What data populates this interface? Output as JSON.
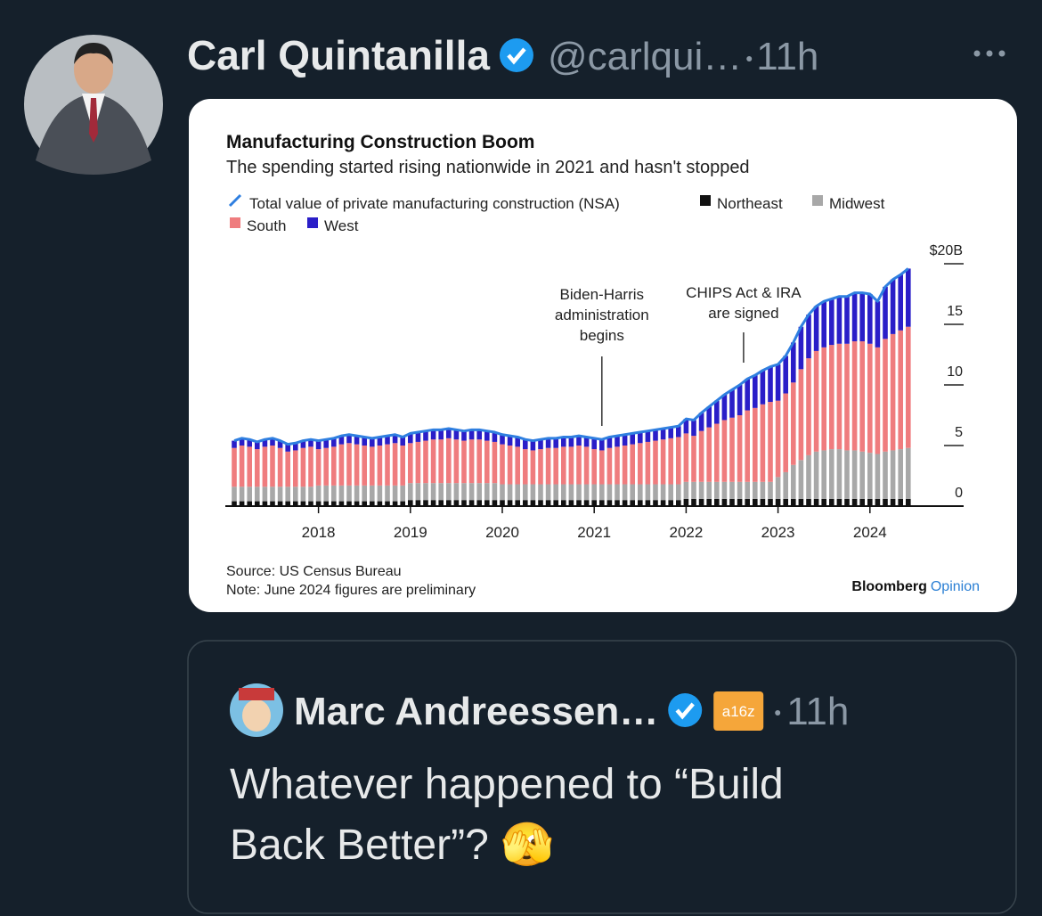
{
  "tweet": {
    "author": "Carl Quintanilla",
    "handle": "@carlqui…",
    "time": "11h"
  },
  "chart_data": {
    "type": "bar",
    "stacked": true,
    "title": "Manufacturing Construction Boom",
    "subtitle": "The spending started rising nationwide in 2021 and hasn't stopped",
    "source": "Source: US Census Bureau",
    "note": "Note: June 2024 figures are preliminary",
    "brand": "Bloomberg",
    "brand_suffix": "Opinion",
    "annotations": [
      {
        "text": [
          "Biden-Harris",
          "administration",
          "begins"
        ]
      },
      {
        "text": [
          "CHIPS Act & IRA",
          "are signed"
        ]
      }
    ],
    "categories": [
      null,
      null,
      null,
      null,
      null,
      null,
      null,
      null,
      null,
      null,
      null,
      "2018",
      null,
      null,
      null,
      null,
      null,
      null,
      null,
      null,
      null,
      null,
      null,
      "2019",
      null,
      null,
      null,
      null,
      null,
      null,
      null,
      null,
      null,
      null,
      null,
      "2020",
      null,
      null,
      null,
      null,
      null,
      null,
      null,
      null,
      null,
      null,
      null,
      "2021",
      null,
      null,
      null,
      null,
      null,
      null,
      null,
      null,
      null,
      null,
      null,
      "2022",
      null,
      null,
      null,
      null,
      null,
      null,
      null,
      null,
      null,
      null,
      null,
      "2023",
      null,
      null,
      null,
      null,
      null,
      null,
      null,
      null,
      null,
      null,
      null,
      "2024",
      null,
      null,
      null,
      null,
      null
    ],
    "series": [
      {
        "name": "Total value of private manufacturing construction (NSA)",
        "color": "#2f7fe0",
        "kind": "line",
        "values": [
          5.4,
          5.6,
          5.5,
          5.3,
          5.5,
          5.6,
          5.4,
          5.1,
          5.2,
          5.4,
          5.5,
          5.4,
          5.5,
          5.6,
          5.8,
          5.9,
          5.8,
          5.7,
          5.6,
          5.7,
          5.8,
          5.9,
          5.7,
          6.0,
          6.1,
          6.2,
          6.3,
          6.3,
          6.4,
          6.3,
          6.2,
          6.3,
          6.3,
          6.2,
          6.1,
          5.9,
          5.8,
          5.7,
          5.5,
          5.4,
          5.5,
          5.6,
          5.6,
          5.7,
          5.7,
          5.8,
          5.7,
          5.6,
          5.5,
          5.7,
          5.8,
          5.9,
          6.0,
          6.1,
          6.2,
          6.3,
          6.4,
          6.5,
          6.6,
          7.2,
          7.1,
          7.7,
          8.2,
          8.7,
          9.2,
          9.6,
          10.0,
          10.5,
          10.8,
          11.2,
          11.5,
          11.7,
          12.4,
          13.5,
          14.8,
          15.8,
          16.5,
          16.9,
          17.1,
          17.3,
          17.3,
          17.6,
          17.6,
          17.5,
          16.9,
          18.1,
          18.7,
          19.1,
          19.6
        ]
      },
      {
        "name": "Northeast",
        "color": "#111111",
        "kind": "bar",
        "values": [
          0.4,
          0.4,
          0.4,
          0.4,
          0.4,
          0.4,
          0.4,
          0.4,
          0.4,
          0.4,
          0.4,
          0.4,
          0.4,
          0.4,
          0.4,
          0.4,
          0.4,
          0.4,
          0.4,
          0.4,
          0.4,
          0.4,
          0.4,
          0.5,
          0.5,
          0.5,
          0.5,
          0.5,
          0.5,
          0.5,
          0.5,
          0.5,
          0.5,
          0.5,
          0.5,
          0.5,
          0.5,
          0.5,
          0.5,
          0.5,
          0.5,
          0.5,
          0.5,
          0.5,
          0.5,
          0.5,
          0.5,
          0.5,
          0.5,
          0.5,
          0.5,
          0.5,
          0.5,
          0.5,
          0.5,
          0.5,
          0.5,
          0.5,
          0.5,
          0.6,
          0.6,
          0.6,
          0.6,
          0.6,
          0.6,
          0.6,
          0.6,
          0.6,
          0.6,
          0.6,
          0.6,
          0.6,
          0.6,
          0.6,
          0.6,
          0.6,
          0.6,
          0.6,
          0.6,
          0.6,
          0.6,
          0.6,
          0.6,
          0.6,
          0.6,
          0.6,
          0.6,
          0.6,
          0.6
        ]
      },
      {
        "name": "Midwest",
        "color": "#a8a8a8",
        "kind": "bar",
        "values": [
          1.2,
          1.2,
          1.2,
          1.2,
          1.2,
          1.2,
          1.2,
          1.2,
          1.2,
          1.2,
          1.2,
          1.3,
          1.3,
          1.3,
          1.3,
          1.3,
          1.3,
          1.3,
          1.3,
          1.3,
          1.3,
          1.3,
          1.3,
          1.4,
          1.4,
          1.4,
          1.4,
          1.4,
          1.4,
          1.4,
          1.4,
          1.4,
          1.4,
          1.4,
          1.4,
          1.3,
          1.3,
          1.3,
          1.3,
          1.3,
          1.3,
          1.3,
          1.3,
          1.3,
          1.3,
          1.3,
          1.3,
          1.3,
          1.3,
          1.3,
          1.3,
          1.3,
          1.3,
          1.3,
          1.3,
          1.3,
          1.3,
          1.3,
          1.3,
          1.4,
          1.4,
          1.4,
          1.4,
          1.4,
          1.4,
          1.4,
          1.4,
          1.4,
          1.4,
          1.4,
          1.4,
          1.8,
          2.2,
          2.8,
          3.2,
          3.6,
          3.9,
          4.0,
          4.1,
          4.1,
          4.0,
          4.0,
          3.9,
          3.8,
          3.7,
          3.9,
          4.0,
          4.1,
          4.2
        ]
      },
      {
        "name": "South",
        "color": "#ef7c7e",
        "kind": "bar",
        "values": [
          3.2,
          3.4,
          3.3,
          3.1,
          3.3,
          3.4,
          3.2,
          2.9,
          3.0,
          3.2,
          3.3,
          3.0,
          3.1,
          3.2,
          3.4,
          3.5,
          3.4,
          3.3,
          3.2,
          3.3,
          3.4,
          3.5,
          3.3,
          3.3,
          3.4,
          3.5,
          3.6,
          3.6,
          3.7,
          3.6,
          3.5,
          3.6,
          3.6,
          3.5,
          3.4,
          3.3,
          3.2,
          3.1,
          2.9,
          2.8,
          2.9,
          3.0,
          3.0,
          3.1,
          3.1,
          3.2,
          3.1,
          2.9,
          2.8,
          3.0,
          3.1,
          3.2,
          3.3,
          3.4,
          3.5,
          3.6,
          3.7,
          3.8,
          3.9,
          4.0,
          3.8,
          4.2,
          4.5,
          4.8,
          5.1,
          5.3,
          5.5,
          5.9,
          6.1,
          6.4,
          6.6,
          6.3,
          6.5,
          6.8,
          7.5,
          8.0,
          8.3,
          8.5,
          8.6,
          8.7,
          8.8,
          9.0,
          9.1,
          9.0,
          8.8,
          9.3,
          9.6,
          9.8,
          10.0
        ]
      },
      {
        "name": "West",
        "color": "#2a1ec8",
        "kind": "bar",
        "values": [
          0.6,
          0.6,
          0.6,
          0.6,
          0.6,
          0.6,
          0.6,
          0.6,
          0.6,
          0.6,
          0.6,
          0.7,
          0.7,
          0.7,
          0.7,
          0.7,
          0.7,
          0.7,
          0.7,
          0.7,
          0.7,
          0.7,
          0.7,
          0.8,
          0.8,
          0.8,
          0.8,
          0.8,
          0.8,
          0.8,
          0.8,
          0.8,
          0.8,
          0.8,
          0.8,
          0.8,
          0.8,
          0.8,
          0.8,
          0.8,
          0.8,
          0.8,
          0.8,
          0.8,
          0.8,
          0.8,
          0.8,
          0.9,
          0.9,
          0.9,
          0.9,
          0.9,
          0.9,
          0.9,
          0.9,
          0.9,
          0.9,
          0.9,
          0.9,
          1.2,
          1.3,
          1.5,
          1.7,
          1.9,
          2.1,
          2.3,
          2.5,
          2.6,
          2.7,
          2.8,
          2.9,
          3.0,
          3.1,
          3.3,
          3.5,
          3.6,
          3.7,
          3.8,
          3.8,
          3.9,
          3.9,
          4.0,
          4.0,
          4.1,
          3.8,
          4.3,
          4.5,
          4.6,
          4.8
        ]
      }
    ],
    "ylim": [
      0,
      21
    ],
    "yticks": [
      0,
      5,
      10,
      15,
      {
        "value": 20,
        "label": "$20B"
      }
    ],
    "grid": false
  },
  "quote": {
    "author": "Marc Andreessen…",
    "affiliation": "a16z",
    "time": "11h",
    "text": [
      "Whatever happened to “Build",
      "Back Better”? 🫣"
    ]
  }
}
